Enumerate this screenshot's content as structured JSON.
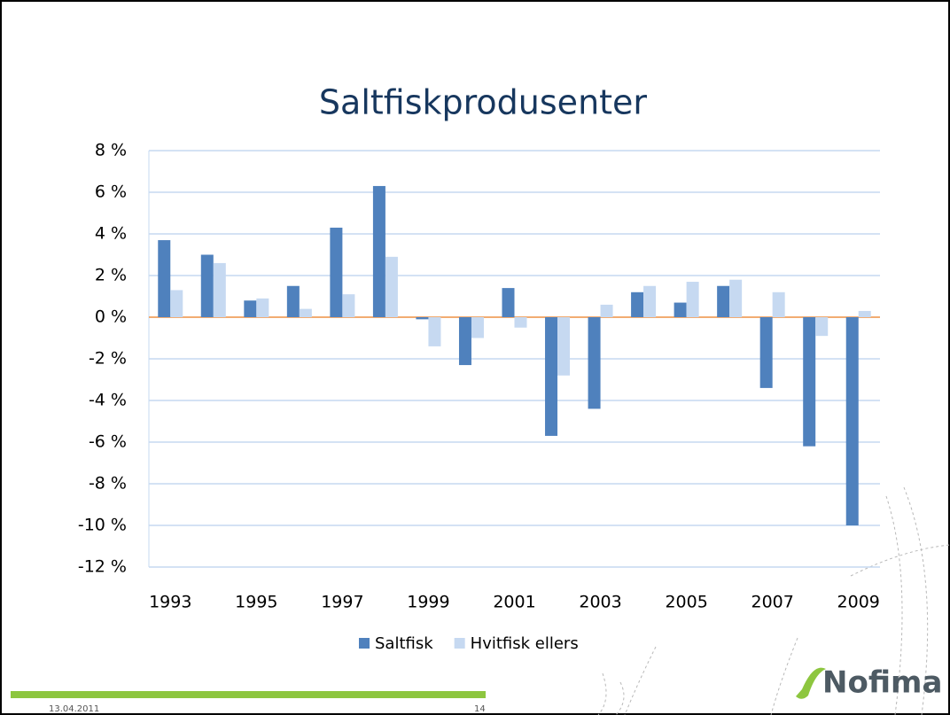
{
  "chart_data": {
    "type": "bar",
    "title": "Saltfiskprodusenter",
    "categories": [
      "1993",
      null,
      "1995",
      null,
      "1997",
      null,
      "1999",
      null,
      "2001",
      null,
      "2003",
      null,
      "2005",
      null,
      "2007",
      null,
      "2009"
    ],
    "series": [
      {
        "name": "Saltfisk",
        "color": "#4f81bd",
        "values": [
          3.7,
          3.0,
          0.8,
          1.5,
          4.3,
          6.3,
          -0.1,
          -2.3,
          1.4,
          -5.7,
          -4.4,
          1.2,
          0.7,
          1.5,
          -3.4,
          -6.2,
          -10.0
        ]
      },
      {
        "name": "Hvitfisk ellers",
        "color": "#c6d9f1",
        "values": [
          1.3,
          2.6,
          0.9,
          0.4,
          1.1,
          2.9,
          -1.4,
          -1.0,
          -0.5,
          -2.8,
          0.6,
          1.5,
          1.7,
          1.8,
          1.2,
          -0.9,
          0.3
        ]
      }
    ],
    "ylim": [
      -12,
      8
    ],
    "yticks": [
      {
        "value": -12,
        "label": "-12 %"
      },
      {
        "value": -10,
        "label": "-10 %"
      },
      {
        "value": -8,
        "label": "-8 %"
      },
      {
        "value": -6,
        "label": "-6 %"
      },
      {
        "value": -4,
        "label": "-4 %"
      },
      {
        "value": -2,
        "label": "-2 %"
      },
      {
        "value": 0,
        "label": "0 %"
      },
      {
        "value": 2,
        "label": "2 %"
      },
      {
        "value": 4,
        "label": "4 %"
      },
      {
        "value": 6,
        "label": "6 %"
      },
      {
        "value": 8,
        "label": "8 %"
      }
    ],
    "grid": true,
    "legend": "bottom"
  },
  "footer": {
    "date": "13.04.2011",
    "page": "14",
    "logo": "Nofima"
  }
}
